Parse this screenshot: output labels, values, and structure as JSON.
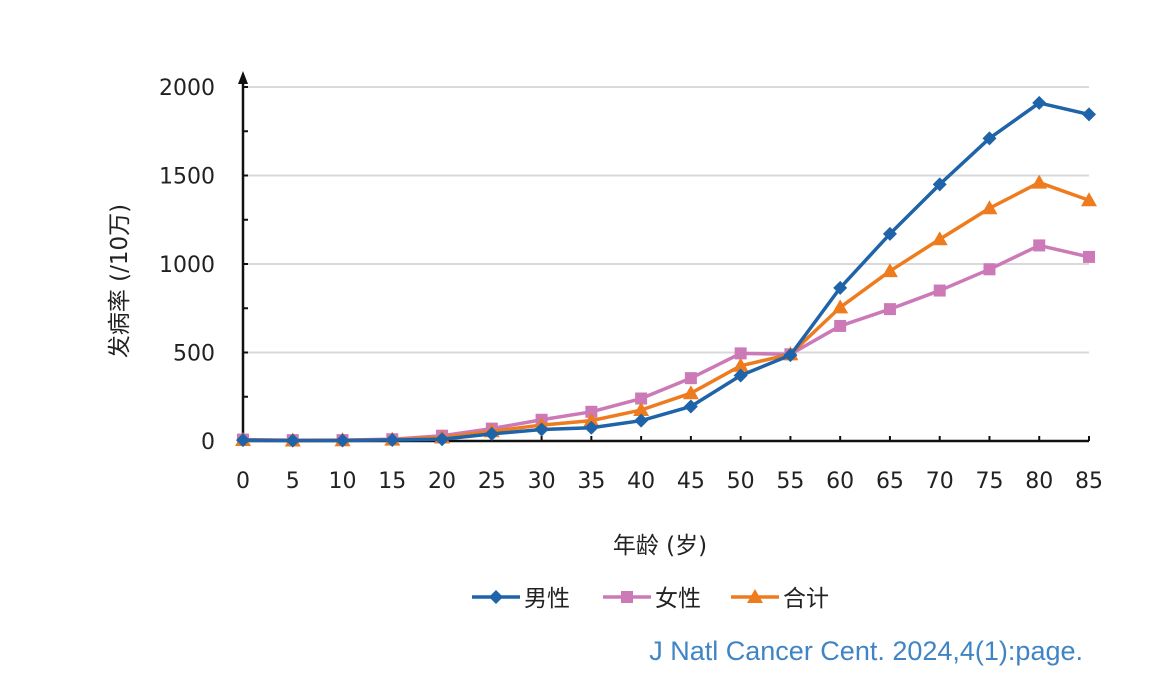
{
  "chart_data": {
    "type": "line",
    "title": "",
    "xlabel": "年龄 (岁)",
    "ylabel": "发病率 (/10万)",
    "ylim": [
      0,
      2000
    ],
    "yticks": [
      0,
      500,
      1000,
      1500,
      2000
    ],
    "grid": true,
    "legend_position": "bottom",
    "categories": [
      "0",
      "5",
      "10",
      "15",
      "20",
      "25",
      "30",
      "35",
      "40",
      "45",
      "50",
      "55",
      "60",
      "65",
      "70",
      "75",
      "80",
      "85"
    ],
    "series": [
      {
        "name": "男性",
        "color": "#1f63a8",
        "marker": "diamond",
        "values": [
          5,
          2,
          3,
          6,
          10,
          40,
          65,
          75,
          115,
          195,
          370,
          485,
          865,
          1170,
          1450,
          1710,
          1910,
          1845
        ]
      },
      {
        "name": "女性",
        "color": "#cc79b8",
        "marker": "square",
        "values": [
          8,
          5,
          5,
          10,
          30,
          70,
          120,
          165,
          240,
          355,
          495,
          490,
          650,
          745,
          850,
          970,
          1105,
          1040
        ]
      },
      {
        "name": "合计",
        "color": "#ee7b1e",
        "marker": "triangle",
        "values": [
          6,
          3,
          4,
          8,
          20,
          55,
          90,
          115,
          175,
          270,
          425,
          490,
          755,
          960,
          1140,
          1315,
          1460,
          1360
        ]
      }
    ]
  },
  "citation": "J Natl Cancer Cent. 2024,4(1):page."
}
